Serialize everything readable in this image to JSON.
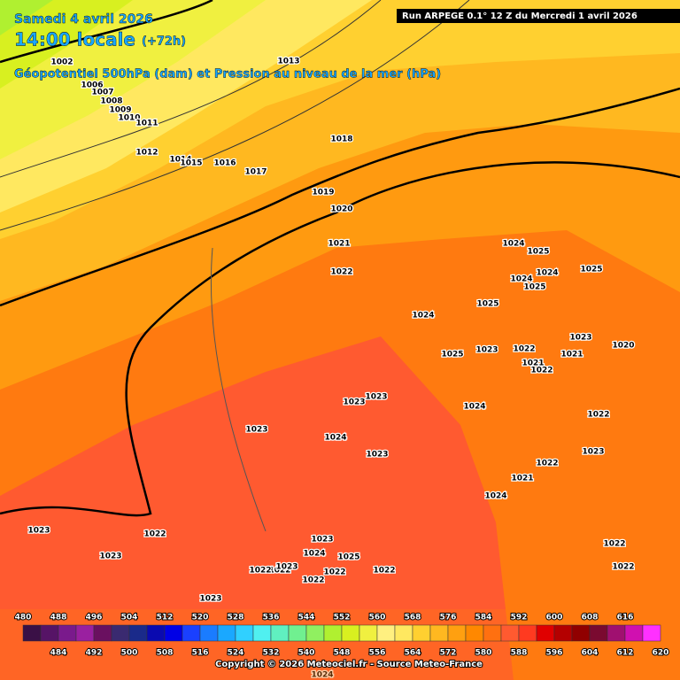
{
  "header": {
    "date": "Samedi 4 avril 2026",
    "time": "14:00 locale",
    "lead": "(+72h)",
    "subtitle": "Géopotentiel 500hPa (dam) et Pression au niveau de la mer (hPa)",
    "run": "Run ARPEGE 0.1° 12 Z du Mercredi 1 avril 2026"
  },
  "isobar_labels": [
    "1002",
    "1006",
    "1007",
    "1008",
    "1009",
    "1010",
    "1011",
    "1012",
    "1013",
    "1014",
    "1015",
    "1016",
    "1017",
    "1018",
    "1019",
    "1020",
    "1021",
    "1022",
    "1024",
    "1024",
    "1025",
    "1025",
    "1024",
    "1025",
    "1024",
    "1025",
    "1023",
    "1025",
    "1023",
    "1022",
    "1021",
    "1022",
    "1024",
    "1022",
    "1023",
    "1023",
    "1024",
    "1023",
    "1023",
    "1022",
    "1023",
    "1024",
    "1025",
    "1022",
    "1022",
    "1023",
    "1023",
    "1022",
    "1022",
    "1022",
    "1021",
    "1022",
    "1023",
    "1024",
    "1023",
    "1020",
    "1021",
    "1022",
    "1022",
    "1023",
    "1024"
  ],
  "scale": {
    "values": [
      480,
      484,
      488,
      492,
      496,
      500,
      504,
      508,
      512,
      516,
      520,
      524,
      528,
      532,
      536,
      540,
      544,
      548,
      552,
      556,
      560,
      564,
      568,
      572,
      576,
      580,
      584,
      588,
      592,
      596,
      600,
      604,
      608,
      612,
      616,
      620
    ],
    "colors": [
      "#3a1046",
      "#561466",
      "#7a1a8c",
      "#9a20a0",
      "#6a1060",
      "#3a2a70",
      "#1a2a8a",
      "#0a0ab0",
      "#0000e6",
      "#1a40ff",
      "#1a7cff",
      "#1aa8ff",
      "#30d0ff",
      "#50f0f0",
      "#60f0c0",
      "#70f090",
      "#90f060",
      "#b0f030",
      "#d8f020",
      "#f0f040",
      "#fff080",
      "#ffe860",
      "#ffd030",
      "#ffb820",
      "#ffa010",
      "#ff8800",
      "#ff7010",
      "#ff5a30",
      "#ff3a20",
      "#e00000",
      "#b40000",
      "#900000",
      "#7a0a30",
      "#a01070",
      "#d010b0",
      "#ff30ff"
    ]
  },
  "copyright": "Copyright © 2026 Meteociel.fr - Source Meteo-France"
}
